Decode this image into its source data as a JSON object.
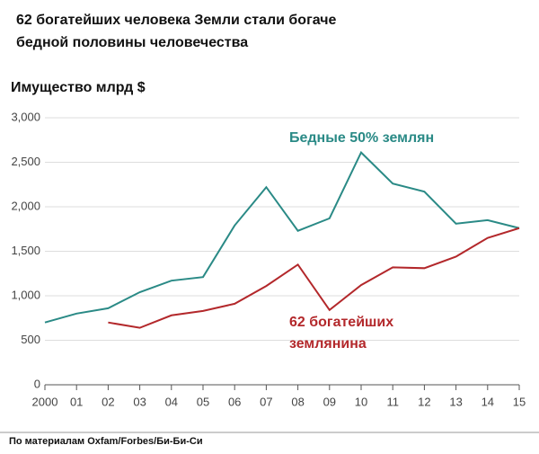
{
  "chart_data": {
    "type": "line",
    "title": "62 богатейших человека Земли стали богаче бедной половины человечества",
    "y_label": "Имущество млрд $",
    "source": "По материалам Oxfam/Forbes/Би-Би-Си",
    "categories": [
      "2000",
      "01",
      "02",
      "03",
      "04",
      "05",
      "06",
      "07",
      "08",
      "09",
      "10",
      "11",
      "12",
      "13",
      "14",
      "15"
    ],
    "series": [
      {
        "name": "Бедные 50% землян",
        "color": "#2a8a86",
        "values": [
          700,
          800,
          860,
          1040,
          1170,
          1210,
          1790,
          2220,
          1730,
          1870,
          2610,
          2260,
          2170,
          1810,
          1850,
          1760
        ]
      },
      {
        "name": "62 богатейших землянина",
        "color": "#b3282b",
        "values": [
          null,
          null,
          700,
          640,
          780,
          830,
          910,
          1110,
          1350,
          840,
          1120,
          1320,
          1310,
          1440,
          1650,
          1760
        ]
      }
    ],
    "ylim": [
      0,
      3000
    ],
    "yticks": [
      0,
      500,
      {
        "value": 1000,
        "label": "1,000"
      },
      {
        "value": 1500,
        "label": "1,500"
      },
      {
        "value": 2000,
        "label": "2,000"
      },
      {
        "value": 2500,
        "label": "2,500"
      },
      {
        "value": 3000,
        "label": "3,000"
      }
    ],
    "grid": true
  }
}
